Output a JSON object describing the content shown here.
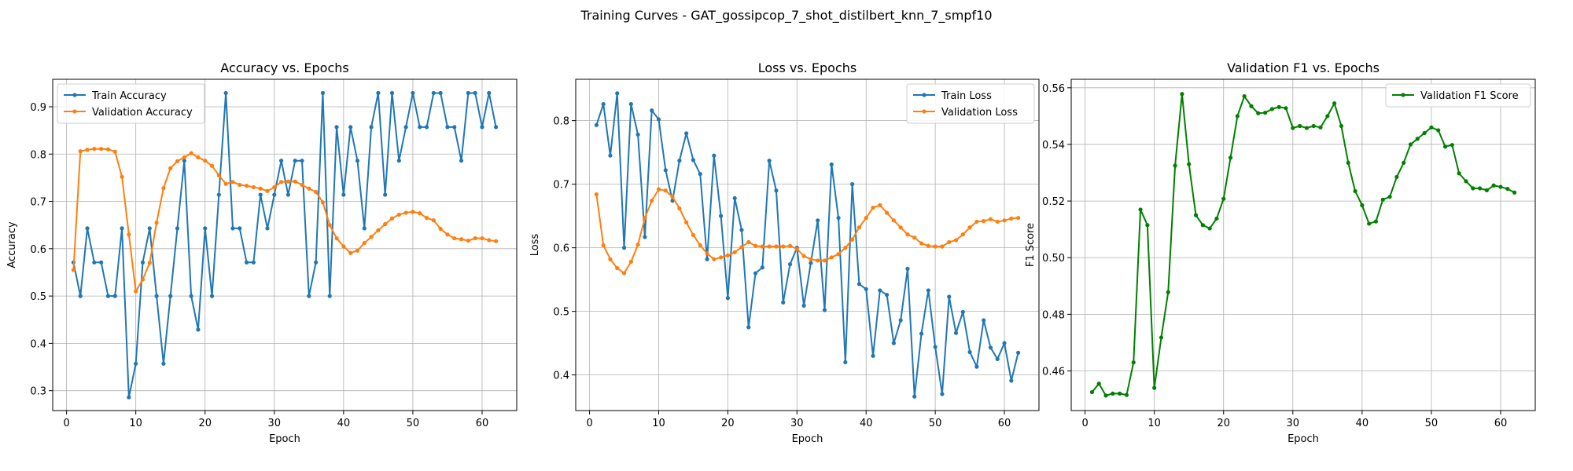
{
  "figure_title": "Training Curves - GAT_gossipcop_7_shot_distilbert_knn_7_smpf10",
  "chart_data": [
    {
      "type": "line",
      "title": "Accuracy vs. Epochs",
      "xlabel": "Epoch",
      "ylabel": "Accuracy",
      "xlim": [
        -2,
        65
      ],
      "ylim": [
        0.258,
        0.958
      ],
      "xticks": [
        0,
        10,
        20,
        30,
        40,
        50,
        60
      ],
      "yticks": [
        0.3,
        0.4,
        0.5,
        0.6,
        0.7,
        0.8,
        0.9
      ],
      "grid": true,
      "legend": "upper-left",
      "x": [
        1,
        2,
        3,
        4,
        5,
        6,
        7,
        8,
        9,
        10,
        11,
        12,
        13,
        14,
        15,
        16,
        17,
        18,
        19,
        20,
        21,
        22,
        23,
        24,
        25,
        26,
        27,
        28,
        29,
        30,
        31,
        32,
        33,
        34,
        35,
        36,
        37,
        38,
        39,
        40,
        41,
        42,
        43,
        44,
        45,
        46,
        47,
        48,
        49,
        50,
        51,
        52,
        53,
        54,
        55,
        56,
        57,
        58,
        59,
        60,
        61,
        62
      ],
      "series": [
        {
          "name": "Train Accuracy",
          "color": "#1f77b4",
          "values": [
            0.571,
            0.5,
            0.643,
            0.571,
            0.571,
            0.5,
            0.5,
            0.643,
            0.286,
            0.357,
            0.571,
            0.643,
            0.5,
            0.357,
            0.5,
            0.643,
            0.786,
            0.5,
            0.429,
            0.643,
            0.5,
            0.714,
            0.929,
            0.643,
            0.643,
            0.571,
            0.571,
            0.714,
            0.643,
            0.714,
            0.786,
            0.714,
            0.786,
            0.786,
            0.5,
            0.571,
            0.929,
            0.5,
            0.857,
            0.714,
            0.857,
            0.786,
            0.643,
            0.857,
            0.929,
            0.714,
            0.929,
            0.786,
            0.857,
            0.929,
            0.857,
            0.857,
            0.929,
            0.929,
            0.857,
            0.857,
            0.786,
            0.929,
            0.929,
            0.857,
            0.929,
            0.857
          ]
        },
        {
          "name": "Validation Accuracy",
          "color": "#ff7f0e",
          "values": [
            0.555,
            0.806,
            0.809,
            0.811,
            0.811,
            0.81,
            0.805,
            0.752,
            0.63,
            0.51,
            0.535,
            0.57,
            0.655,
            0.728,
            0.77,
            0.785,
            0.793,
            0.802,
            0.793,
            0.786,
            0.775,
            0.755,
            0.737,
            0.741,
            0.735,
            0.733,
            0.73,
            0.727,
            0.722,
            0.73,
            0.741,
            0.742,
            0.742,
            0.735,
            0.727,
            0.72,
            0.698,
            0.65,
            0.622,
            0.605,
            0.591,
            0.596,
            0.612,
            0.625,
            0.639,
            0.652,
            0.664,
            0.672,
            0.676,
            0.678,
            0.675,
            0.665,
            0.66,
            0.642,
            0.63,
            0.622,
            0.62,
            0.617,
            0.622,
            0.622,
            0.618,
            0.616
          ]
        }
      ]
    },
    {
      "type": "line",
      "title": "Loss vs. Epochs",
      "xlabel": "Epoch",
      "ylabel": "Loss",
      "xlim": [
        -2,
        65
      ],
      "ylim": [
        0.344,
        0.865
      ],
      "xticks": [
        0,
        10,
        20,
        30,
        40,
        50,
        60
      ],
      "yticks": [
        0.4,
        0.5,
        0.6,
        0.7,
        0.8
      ],
      "grid": true,
      "legend": "upper-right",
      "x": [
        1,
        2,
        3,
        4,
        5,
        6,
        7,
        8,
        9,
        10,
        11,
        12,
        13,
        14,
        15,
        16,
        17,
        18,
        19,
        20,
        21,
        22,
        23,
        24,
        25,
        26,
        27,
        28,
        29,
        30,
        31,
        32,
        33,
        34,
        35,
        36,
        37,
        38,
        39,
        40,
        41,
        42,
        43,
        44,
        45,
        46,
        47,
        48,
        49,
        50,
        51,
        52,
        53,
        54,
        55,
        56,
        57,
        58,
        59,
        60,
        61,
        62
      ],
      "series": [
        {
          "name": "Train Loss",
          "color": "#1f77b4",
          "values": [
            0.793,
            0.826,
            0.745,
            0.843,
            0.6,
            0.826,
            0.778,
            0.617,
            0.816,
            0.802,
            0.722,
            0.674,
            0.737,
            0.78,
            0.738,
            0.716,
            0.582,
            0.745,
            0.65,
            0.521,
            0.678,
            0.628,
            0.475,
            0.56,
            0.569,
            0.737,
            0.69,
            0.514,
            0.574,
            0.6,
            0.509,
            0.576,
            0.643,
            0.502,
            0.731,
            0.647,
            0.42,
            0.7,
            0.543,
            0.535,
            0.43,
            0.533,
            0.526,
            0.45,
            0.486,
            0.567,
            0.366,
            0.465,
            0.533,
            0.444,
            0.37,
            0.523,
            0.466,
            0.499,
            0.436,
            0.413,
            0.486,
            0.443,
            0.425,
            0.45,
            0.391,
            0.435
          ]
        },
        {
          "name": "Validation Loss",
          "color": "#ff7f0e",
          "values": [
            0.684,
            0.604,
            0.582,
            0.568,
            0.56,
            0.578,
            0.605,
            0.647,
            0.674,
            0.692,
            0.69,
            0.68,
            0.662,
            0.64,
            0.62,
            0.604,
            0.591,
            0.582,
            0.585,
            0.588,
            0.593,
            0.601,
            0.609,
            0.603,
            0.602,
            0.602,
            0.602,
            0.602,
            0.603,
            0.598,
            0.587,
            0.582,
            0.58,
            0.58,
            0.585,
            0.59,
            0.6,
            0.613,
            0.632,
            0.647,
            0.663,
            0.667,
            0.655,
            0.643,
            0.632,
            0.621,
            0.616,
            0.607,
            0.603,
            0.602,
            0.602,
            0.609,
            0.612,
            0.621,
            0.632,
            0.641,
            0.642,
            0.645,
            0.641,
            0.643,
            0.646,
            0.647
          ]
        }
      ]
    },
    {
      "type": "line",
      "title": "Validation F1 vs. Epochs",
      "xlabel": "Epoch",
      "ylabel": "F1 Score",
      "xlim": [
        -2,
        65
      ],
      "ylim": [
        0.446,
        0.563
      ],
      "xticks": [
        0,
        10,
        20,
        30,
        40,
        50,
        60
      ],
      "yticks": [
        0.46,
        0.48,
        0.5,
        0.52,
        0.54,
        0.56
      ],
      "grid": true,
      "legend": "upper-right",
      "x": [
        1,
        2,
        3,
        4,
        5,
        6,
        7,
        8,
        9,
        10,
        11,
        12,
        13,
        14,
        15,
        16,
        17,
        18,
        19,
        20,
        21,
        22,
        23,
        24,
        25,
        26,
        27,
        28,
        29,
        30,
        31,
        32,
        33,
        34,
        35,
        36,
        37,
        38,
        39,
        40,
        41,
        42,
        43,
        44,
        45,
        46,
        47,
        48,
        49,
        50,
        51,
        52,
        53,
        54,
        55,
        56,
        57,
        58,
        59,
        60,
        61,
        62
      ],
      "series": [
        {
          "name": "Validation F1 Score",
          "color": "#008000",
          "values": [
            0.4525,
            0.4555,
            0.4513,
            0.452,
            0.452,
            0.4515,
            0.463,
            0.517,
            0.5115,
            0.454,
            0.4718,
            0.4878,
            0.5325,
            0.5578,
            0.533,
            0.515,
            0.5115,
            0.5103,
            0.5138,
            0.5208,
            0.5353,
            0.55,
            0.557,
            0.5535,
            0.551,
            0.5512,
            0.5525,
            0.5532,
            0.5528,
            0.5458,
            0.5465,
            0.5458,
            0.5465,
            0.546,
            0.55,
            0.5545,
            0.5465,
            0.5335,
            0.5235,
            0.5185,
            0.512,
            0.5128,
            0.5205,
            0.5215,
            0.5285,
            0.5335,
            0.54,
            0.542,
            0.544,
            0.546,
            0.545,
            0.5392,
            0.5398,
            0.5298,
            0.527,
            0.5245,
            0.5245,
            0.5238,
            0.5255,
            0.525,
            0.5243,
            0.523
          ]
        }
      ]
    }
  ]
}
